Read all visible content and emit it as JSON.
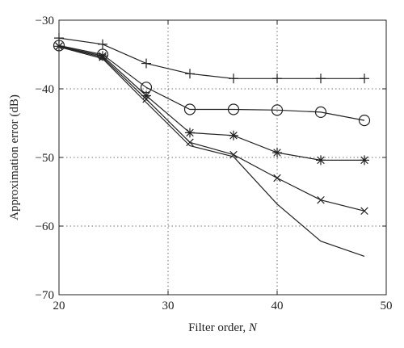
{
  "chart_data": {
    "type": "line",
    "title": "",
    "xlabel": "Filter order, ",
    "xlabel_var": "N",
    "ylabel": "Approximation error (dB)",
    "xlim": [
      20,
      50
    ],
    "ylim": [
      -70,
      -30
    ],
    "xticks": [
      20,
      30,
      40,
      50
    ],
    "yticks": [
      -30,
      -40,
      -50,
      -60,
      -70
    ],
    "grid": true,
    "grid_style": "dotted",
    "legend": "none",
    "line_color": "#222222",
    "series": [
      {
        "marker": "plus",
        "x": [
          20,
          24,
          28,
          32,
          36,
          40,
          44,
          48
        ],
        "y": [
          -32.6,
          -33.5,
          -36.3,
          -37.8,
          -38.5,
          -38.5,
          -38.5,
          -38.5
        ]
      },
      {
        "marker": "circle",
        "x": [
          20,
          24,
          28,
          32,
          36,
          40,
          44,
          48
        ],
        "y": [
          -33.7,
          -35.0,
          -39.8,
          -43.0,
          -43.0,
          -43.1,
          -43.4,
          -44.6
        ]
      },
      {
        "marker": "star",
        "x": [
          20,
          24,
          28,
          32,
          36,
          40,
          44,
          48
        ],
        "y": [
          -33.8,
          -35.2,
          -41.0,
          -46.4,
          -46.8,
          -49.3,
          -50.4,
          -50.4
        ]
      },
      {
        "marker": "cross",
        "x": [
          20,
          24,
          28,
          32,
          36,
          40,
          44,
          48
        ],
        "y": [
          -33.8,
          -35.4,
          -41.5,
          -47.8,
          -49.6,
          -53.0,
          -56.2,
          -57.8
        ]
      },
      {
        "marker": "none",
        "x": [
          20,
          24,
          28,
          32,
          36,
          40,
          44,
          48
        ],
        "y": [
          -33.9,
          -35.6,
          -42.0,
          -48.3,
          -49.9,
          -56.8,
          -62.2,
          -64.4
        ]
      }
    ]
  }
}
